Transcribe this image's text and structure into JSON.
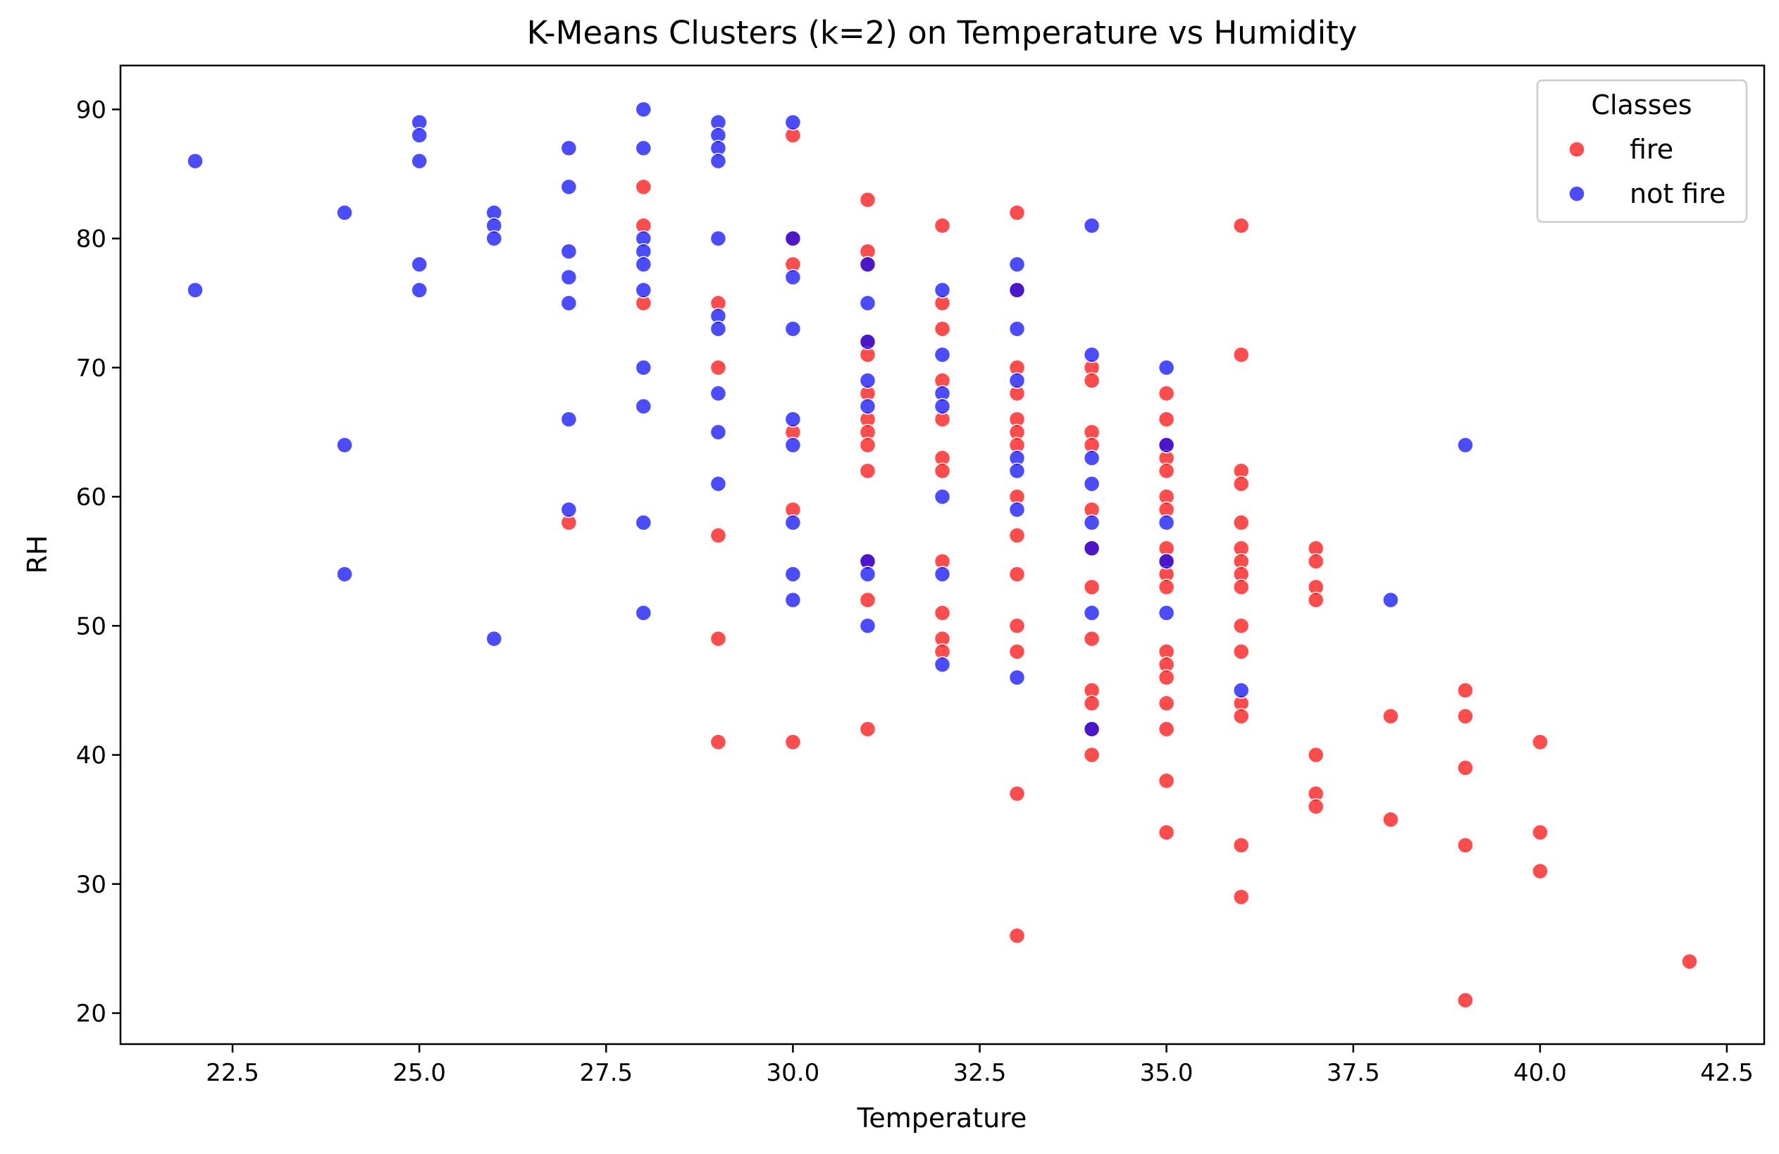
{
  "chart_data": {
    "type": "scatter",
    "title": "K-Means Clusters (k=2) on Temperature vs Humidity",
    "xlabel": "Temperature",
    "ylabel": "RH",
    "xlim": [
      21.0,
      43.0
    ],
    "ylim": [
      17.6,
      93.4
    ],
    "xticks": [
      22.5,
      25.0,
      27.5,
      30.0,
      32.5,
      35.0,
      37.5,
      40.0,
      42.5
    ],
    "xtick_labels": [
      "22.5",
      "25.0",
      "27.5",
      "30.0",
      "32.5",
      "35.0",
      "37.5",
      "40.0",
      "42.5"
    ],
    "yticks": [
      20,
      30,
      40,
      50,
      60,
      70,
      80,
      90
    ],
    "ytick_labels": [
      "20",
      "30",
      "40",
      "50",
      "60",
      "70",
      "80",
      "90"
    ],
    "grid": false,
    "legend": {
      "title": "Classes",
      "position": "top-right"
    },
    "series": [
      {
        "name": "fire",
        "color": "#ff0000",
        "points": [
          [
            27,
            58
          ],
          [
            28,
            84
          ],
          [
            28,
            81
          ],
          [
            28,
            75
          ],
          [
            29,
            75
          ],
          [
            29,
            70
          ],
          [
            29,
            57
          ],
          [
            29,
            49
          ],
          [
            29,
            41
          ],
          [
            30,
            88
          ],
          [
            30,
            80
          ],
          [
            30,
            78
          ],
          [
            30,
            65
          ],
          [
            30,
            59
          ],
          [
            30,
            41
          ],
          [
            31,
            83
          ],
          [
            31,
            79
          ],
          [
            31,
            78
          ],
          [
            31,
            72
          ],
          [
            31,
            71
          ],
          [
            31,
            68
          ],
          [
            31,
            66
          ],
          [
            31,
            65
          ],
          [
            31,
            64
          ],
          [
            31,
            62
          ],
          [
            31,
            55
          ],
          [
            31,
            52
          ],
          [
            31,
            42
          ],
          [
            32,
            81
          ],
          [
            32,
            75
          ],
          [
            32,
            73
          ],
          [
            32,
            69
          ],
          [
            32,
            66
          ],
          [
            32,
            63
          ],
          [
            32,
            62
          ],
          [
            32,
            55
          ],
          [
            32,
            51
          ],
          [
            32,
            49
          ],
          [
            32,
            48
          ],
          [
            33,
            82
          ],
          [
            33,
            76
          ],
          [
            33,
            70
          ],
          [
            33,
            68
          ],
          [
            33,
            66
          ],
          [
            33,
            65
          ],
          [
            33,
            64
          ],
          [
            33,
            60
          ],
          [
            33,
            57
          ],
          [
            33,
            54
          ],
          [
            33,
            50
          ],
          [
            33,
            48
          ],
          [
            33,
            37
          ],
          [
            33,
            26
          ],
          [
            34,
            70
          ],
          [
            34,
            69
          ],
          [
            34,
            65
          ],
          [
            34,
            64
          ],
          [
            34,
            59
          ],
          [
            34,
            56
          ],
          [
            34,
            53
          ],
          [
            34,
            49
          ],
          [
            34,
            45
          ],
          [
            34,
            44
          ],
          [
            34,
            42
          ],
          [
            34,
            40
          ],
          [
            35,
            68
          ],
          [
            35,
            66
          ],
          [
            35,
            64
          ],
          [
            35,
            63
          ],
          [
            35,
            62
          ],
          [
            35,
            60
          ],
          [
            35,
            59
          ],
          [
            35,
            56
          ],
          [
            35,
            55
          ],
          [
            35,
            54
          ],
          [
            35,
            53
          ],
          [
            35,
            48
          ],
          [
            35,
            47
          ],
          [
            35,
            46
          ],
          [
            35,
            44
          ],
          [
            35,
            42
          ],
          [
            35,
            38
          ],
          [
            35,
            34
          ],
          [
            36,
            81
          ],
          [
            36,
            71
          ],
          [
            36,
            62
          ],
          [
            36,
            61
          ],
          [
            36,
            58
          ],
          [
            36,
            56
          ],
          [
            36,
            55
          ],
          [
            36,
            54
          ],
          [
            36,
            53
          ],
          [
            36,
            50
          ],
          [
            36,
            48
          ],
          [
            36,
            44
          ],
          [
            36,
            43
          ],
          [
            36,
            33
          ],
          [
            36,
            29
          ],
          [
            37,
            56
          ],
          [
            37,
            55
          ],
          [
            37,
            53
          ],
          [
            37,
            52
          ],
          [
            37,
            40
          ],
          [
            37,
            37
          ],
          [
            37,
            36
          ],
          [
            38,
            43
          ],
          [
            38,
            35
          ],
          [
            39,
            45
          ],
          [
            39,
            43
          ],
          [
            39,
            39
          ],
          [
            39,
            33
          ],
          [
            39,
            21
          ],
          [
            40,
            41
          ],
          [
            40,
            34
          ],
          [
            40,
            31
          ],
          [
            42,
            24
          ]
        ]
      },
      {
        "name": "not fire",
        "color": "#0000ff",
        "points": [
          [
            22,
            86
          ],
          [
            22,
            76
          ],
          [
            24,
            82
          ],
          [
            24,
            64
          ],
          [
            24,
            54
          ],
          [
            25,
            89
          ],
          [
            25,
            88
          ],
          [
            25,
            86
          ],
          [
            25,
            78
          ],
          [
            25,
            76
          ],
          [
            26,
            82
          ],
          [
            26,
            81
          ],
          [
            26,
            80
          ],
          [
            26,
            49
          ],
          [
            27,
            87
          ],
          [
            27,
            84
          ],
          [
            27,
            79
          ],
          [
            27,
            77
          ],
          [
            27,
            75
          ],
          [
            27,
            66
          ],
          [
            27,
            59
          ],
          [
            28,
            90
          ],
          [
            28,
            87
          ],
          [
            28,
            80
          ],
          [
            28,
            79
          ],
          [
            28,
            78
          ],
          [
            28,
            76
          ],
          [
            28,
            70
          ],
          [
            28,
            67
          ],
          [
            28,
            58
          ],
          [
            28,
            51
          ],
          [
            29,
            89
          ],
          [
            29,
            88
          ],
          [
            29,
            87
          ],
          [
            29,
            86
          ],
          [
            29,
            80
          ],
          [
            29,
            74
          ],
          [
            29,
            73
          ],
          [
            29,
            68
          ],
          [
            29,
            65
          ],
          [
            29,
            61
          ],
          [
            30,
            89
          ],
          [
            30,
            80
          ],
          [
            30,
            77
          ],
          [
            30,
            73
          ],
          [
            30,
            66
          ],
          [
            30,
            64
          ],
          [
            30,
            58
          ],
          [
            30,
            54
          ],
          [
            30,
            52
          ],
          [
            31,
            78
          ],
          [
            31,
            75
          ],
          [
            31,
            72
          ],
          [
            31,
            69
          ],
          [
            31,
            67
          ],
          [
            31,
            55
          ],
          [
            31,
            54
          ],
          [
            31,
            50
          ],
          [
            32,
            76
          ],
          [
            32,
            71
          ],
          [
            32,
            68
          ],
          [
            32,
            67
          ],
          [
            32,
            60
          ],
          [
            32,
            54
          ],
          [
            32,
            47
          ],
          [
            33,
            78
          ],
          [
            33,
            76
          ],
          [
            33,
            73
          ],
          [
            33,
            69
          ],
          [
            33,
            63
          ],
          [
            33,
            62
          ],
          [
            33,
            59
          ],
          [
            33,
            46
          ],
          [
            34,
            81
          ],
          [
            34,
            71
          ],
          [
            34,
            63
          ],
          [
            34,
            61
          ],
          [
            34,
            58
          ],
          [
            34,
            56
          ],
          [
            34,
            51
          ],
          [
            34,
            42
          ],
          [
            35,
            70
          ],
          [
            35,
            64
          ],
          [
            35,
            58
          ],
          [
            35,
            55
          ],
          [
            35,
            51
          ],
          [
            36,
            45
          ],
          [
            38,
            52
          ],
          [
            39,
            64
          ]
        ]
      }
    ]
  }
}
